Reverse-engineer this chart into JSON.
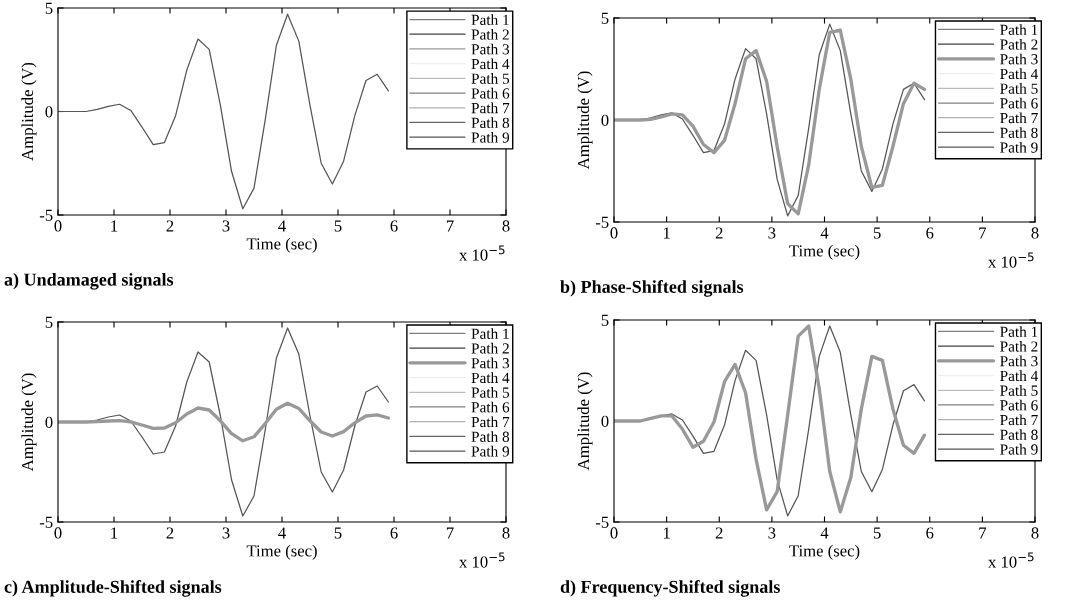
{
  "chart_data": [
    {
      "type": "line",
      "title": "a) Undamaged signals",
      "xlabel": "Time (sec)",
      "ylabel": "Amplitude (V)",
      "annotations": [
        "x 10$^{−5}$"
      ],
      "xlim": [
        0,
        8
      ],
      "xticks": [
        0,
        1,
        2,
        3,
        4,
        5,
        6,
        7,
        8
      ],
      "ylim": [
        -5,
        5
      ],
      "yticks": [
        -5,
        0,
        5
      ],
      "legend": "top right",
      "grid": false,
      "x": [
        0,
        0.1,
        0.3,
        0.5,
        0.7,
        0.9,
        1.1,
        1.3,
        1.5,
        1.7,
        1.9,
        2.1,
        2.3,
        2.5,
        2.7,
        2.9,
        3.1,
        3.3,
        3.5,
        3.7,
        3.9,
        4.1,
        4.3,
        4.5,
        4.7,
        4.9,
        5.1,
        5.3,
        5.5,
        5.7,
        5.9
      ],
      "series": [
        {
          "name": "Path 1",
          "color": "#7f7f7f",
          "values": [
            null,
            null,
            null,
            null,
            null,
            null,
            null,
            null,
            null,
            null,
            null,
            null,
            null,
            null,
            null,
            null,
            null,
            null,
            null,
            null,
            null,
            null,
            null,
            null,
            null,
            null,
            null,
            null,
            null,
            null,
            null
          ]
        },
        {
          "name": "Path 2",
          "color": "#404040",
          "values": [
            null,
            null,
            null,
            null,
            null,
            null,
            null,
            null,
            null,
            null,
            null,
            null,
            null,
            null,
            null,
            null,
            null,
            null,
            null,
            null,
            null,
            null,
            null,
            null,
            null,
            null,
            null,
            null,
            null,
            null,
            null
          ]
        },
        {
          "name": "Path 3",
          "color": "#999999",
          "values": [
            null,
            null,
            null,
            null,
            null,
            null,
            null,
            null,
            null,
            null,
            null,
            null,
            null,
            null,
            null,
            null,
            null,
            null,
            null,
            null,
            null,
            null,
            null,
            null,
            null,
            null,
            null,
            null,
            null,
            null,
            null
          ]
        },
        {
          "name": "Path 4",
          "color": "#eeeeee",
          "values": [
            null,
            null,
            null,
            null,
            null,
            null,
            null,
            null,
            null,
            null,
            null,
            null,
            null,
            null,
            null,
            null,
            null,
            null,
            null,
            null,
            null,
            null,
            null,
            null,
            null,
            null,
            null,
            null,
            null,
            null,
            null
          ]
        },
        {
          "name": "Path 5",
          "color": "#bbbbbb",
          "values": [
            null,
            null,
            null,
            null,
            null,
            null,
            null,
            null,
            null,
            null,
            null,
            null,
            null,
            null,
            null,
            null,
            null,
            null,
            null,
            null,
            null,
            null,
            null,
            null,
            null,
            null,
            null,
            null,
            null,
            null,
            null
          ]
        },
        {
          "name": "Path 6",
          "color": "#808080",
          "values": [
            null,
            null,
            null,
            null,
            null,
            null,
            null,
            null,
            null,
            null,
            null,
            null,
            null,
            null,
            null,
            null,
            null,
            null,
            null,
            null,
            null,
            null,
            null,
            null,
            null,
            null,
            null,
            null,
            null,
            null,
            null
          ]
        },
        {
          "name": "Path 7",
          "color": "#b0b0b0",
          "values": [
            null,
            null,
            null,
            null,
            null,
            null,
            null,
            null,
            null,
            null,
            null,
            null,
            null,
            null,
            null,
            null,
            null,
            null,
            null,
            null,
            null,
            null,
            null,
            null,
            null,
            null,
            null,
            null,
            null,
            null,
            null
          ]
        },
        {
          "name": "Path 8",
          "color": "#666666",
          "values": [
            null,
            null,
            null,
            null,
            null,
            null,
            null,
            null,
            null,
            null,
            null,
            null,
            null,
            null,
            null,
            null,
            null,
            null,
            null,
            null,
            null,
            null,
            null,
            null,
            null,
            null,
            null,
            null,
            null,
            null,
            null
          ]
        },
        {
          "name": "Path 9",
          "color": "#555555",
          "values": [
            0,
            0,
            0,
            0,
            0.1,
            0.25,
            0.35,
            0.05,
            -0.75,
            -1.6,
            -1.5,
            -0.2,
            2.0,
            3.5,
            3.0,
            0.3,
            -2.9,
            -4.7,
            -3.7,
            -0.4,
            3.2,
            4.7,
            3.4,
            0.3,
            -2.5,
            -3.5,
            -2.4,
            -0.2,
            1.5,
            1.8,
            1.0
          ]
        }
      ]
    },
    {
      "type": "line",
      "title": "b) Phase-Shifted signals",
      "xlabel": "Time (sec)",
      "ylabel": "Amplitude (V)",
      "annotations": [
        "x 10$^{−5}$"
      ],
      "xlim": [
        0,
        8
      ],
      "xticks": [
        0,
        1,
        2,
        3,
        4,
        5,
        6,
        7,
        8
      ],
      "ylim": [
        -5,
        5
      ],
      "yticks": [
        -5,
        0,
        5
      ],
      "legend": "top right",
      "grid": false,
      "x": [
        0,
        0.1,
        0.3,
        0.5,
        0.7,
        0.9,
        1.1,
        1.3,
        1.5,
        1.7,
        1.9,
        2.1,
        2.3,
        2.5,
        2.7,
        2.9,
        3.1,
        3.3,
        3.5,
        3.7,
        3.9,
        4.1,
        4.3,
        4.5,
        4.7,
        4.9,
        5.1,
        5.3,
        5.5,
        5.7,
        5.9
      ],
      "series": [
        {
          "name": "Path 1",
          "color": "#7f7f7f",
          "values": [
            null,
            null,
            null,
            null,
            null,
            null,
            null,
            null,
            null,
            null,
            null,
            null,
            null,
            null,
            null,
            null,
            null,
            null,
            null,
            null,
            null,
            null,
            null,
            null,
            null,
            null,
            null,
            null,
            null,
            null,
            null
          ]
        },
        {
          "name": "Path 2",
          "color": "#404040",
          "values": [
            null,
            null,
            null,
            null,
            null,
            null,
            null,
            null,
            null,
            null,
            null,
            null,
            null,
            null,
            null,
            null,
            null,
            null,
            null,
            null,
            null,
            null,
            null,
            null,
            null,
            null,
            null,
            null,
            null,
            null,
            null
          ]
        },
        {
          "name": "Path 3",
          "color": "#999999",
          "values": [
            0,
            0,
            0,
            0,
            0.03,
            0.15,
            0.3,
            0.25,
            -0.3,
            -1.2,
            -1.6,
            -1.0,
            0.8,
            3.0,
            3.4,
            1.9,
            -1.3,
            -4.1,
            -4.6,
            -2.2,
            1.5,
            4.3,
            4.4,
            2.0,
            -1.3,
            -3.3,
            -3.2,
            -1.3,
            0.8,
            1.8,
            1.5
          ]
        },
        {
          "name": "Path 4",
          "color": "#eeeeee",
          "values": [
            null,
            null,
            null,
            null,
            null,
            null,
            null,
            null,
            null,
            null,
            null,
            null,
            null,
            null,
            null,
            null,
            null,
            null,
            null,
            null,
            null,
            null,
            null,
            null,
            null,
            null,
            null,
            null,
            null,
            null,
            null
          ]
        },
        {
          "name": "Path 5",
          "color": "#bbbbbb",
          "values": [
            null,
            null,
            null,
            null,
            null,
            null,
            null,
            null,
            null,
            null,
            null,
            null,
            null,
            null,
            null,
            null,
            null,
            null,
            null,
            null,
            null,
            null,
            null,
            null,
            null,
            null,
            null,
            null,
            null,
            null,
            null
          ]
        },
        {
          "name": "Path 6",
          "color": "#808080",
          "values": [
            null,
            null,
            null,
            null,
            null,
            null,
            null,
            null,
            null,
            null,
            null,
            null,
            null,
            null,
            null,
            null,
            null,
            null,
            null,
            null,
            null,
            null,
            null,
            null,
            null,
            null,
            null,
            null,
            null,
            null,
            null
          ]
        },
        {
          "name": "Path 7",
          "color": "#b0b0b0",
          "values": [
            null,
            null,
            null,
            null,
            null,
            null,
            null,
            null,
            null,
            null,
            null,
            null,
            null,
            null,
            null,
            null,
            null,
            null,
            null,
            null,
            null,
            null,
            null,
            null,
            null,
            null,
            null,
            null,
            null,
            null,
            null
          ]
        },
        {
          "name": "Path 8",
          "color": "#666666",
          "values": [
            null,
            null,
            null,
            null,
            null,
            null,
            null,
            null,
            null,
            null,
            null,
            null,
            null,
            null,
            null,
            null,
            null,
            null,
            null,
            null,
            null,
            null,
            null,
            null,
            null,
            null,
            null,
            null,
            null,
            null,
            null
          ]
        },
        {
          "name": "Path 9",
          "color": "#555555",
          "values": [
            0,
            0,
            0,
            0,
            0.1,
            0.25,
            0.35,
            0.05,
            -0.75,
            -1.6,
            -1.5,
            -0.2,
            2.0,
            3.5,
            3.0,
            0.3,
            -2.9,
            -4.7,
            -3.7,
            -0.4,
            3.2,
            4.7,
            3.4,
            0.3,
            -2.5,
            -3.5,
            -2.4,
            -0.2,
            1.5,
            1.8,
            1.0
          ]
        }
      ]
    },
    {
      "type": "line",
      "title": "c) Amplitude-Shifted signals",
      "xlabel": "Time (sec)",
      "ylabel": "Amplitude (V)",
      "annotations": [
        "x 10$^{−5}$"
      ],
      "xlim": [
        0,
        8
      ],
      "xticks": [
        0,
        1,
        2,
        3,
        4,
        5,
        6,
        7,
        8
      ],
      "ylim": [
        -5,
        5
      ],
      "yticks": [
        -5,
        0,
        5
      ],
      "legend": "top right",
      "grid": false,
      "x": [
        0,
        0.1,
        0.3,
        0.5,
        0.7,
        0.9,
        1.1,
        1.3,
        1.5,
        1.7,
        1.9,
        2.1,
        2.3,
        2.5,
        2.7,
        2.9,
        3.1,
        3.3,
        3.5,
        3.7,
        3.9,
        4.1,
        4.3,
        4.5,
        4.7,
        4.9,
        5.1,
        5.3,
        5.5,
        5.7,
        5.9
      ],
      "series": [
        {
          "name": "Path 1",
          "color": "#7f7f7f",
          "values": [
            null,
            null,
            null,
            null,
            null,
            null,
            null,
            null,
            null,
            null,
            null,
            null,
            null,
            null,
            null,
            null,
            null,
            null,
            null,
            null,
            null,
            null,
            null,
            null,
            null,
            null,
            null,
            null,
            null,
            null,
            null
          ]
        },
        {
          "name": "Path 2",
          "color": "#404040",
          "values": [
            null,
            null,
            null,
            null,
            null,
            null,
            null,
            null,
            null,
            null,
            null,
            null,
            null,
            null,
            null,
            null,
            null,
            null,
            null,
            null,
            null,
            null,
            null,
            null,
            null,
            null,
            null,
            null,
            null,
            null,
            null
          ]
        },
        {
          "name": "Path 3",
          "color": "#999999",
          "values": [
            0,
            0,
            0,
            0,
            0.02,
            0.05,
            0.07,
            0.01,
            -0.15,
            -0.32,
            -0.3,
            -0.04,
            0.4,
            0.7,
            0.6,
            0.06,
            -0.58,
            -0.94,
            -0.74,
            -0.08,
            0.64,
            0.94,
            0.68,
            0.06,
            -0.5,
            -0.7,
            -0.48,
            -0.04,
            0.3,
            0.36,
            0.2
          ]
        },
        {
          "name": "Path 4",
          "color": "#eeeeee",
          "values": [
            null,
            null,
            null,
            null,
            null,
            null,
            null,
            null,
            null,
            null,
            null,
            null,
            null,
            null,
            null,
            null,
            null,
            null,
            null,
            null,
            null,
            null,
            null,
            null,
            null,
            null,
            null,
            null,
            null,
            null,
            null
          ]
        },
        {
          "name": "Path 5",
          "color": "#bbbbbb",
          "values": [
            null,
            null,
            null,
            null,
            null,
            null,
            null,
            null,
            null,
            null,
            null,
            null,
            null,
            null,
            null,
            null,
            null,
            null,
            null,
            null,
            null,
            null,
            null,
            null,
            null,
            null,
            null,
            null,
            null,
            null,
            null
          ]
        },
        {
          "name": "Path 6",
          "color": "#808080",
          "values": [
            null,
            null,
            null,
            null,
            null,
            null,
            null,
            null,
            null,
            null,
            null,
            null,
            null,
            null,
            null,
            null,
            null,
            null,
            null,
            null,
            null,
            null,
            null,
            null,
            null,
            null,
            null,
            null,
            null,
            null,
            null
          ]
        },
        {
          "name": "Path 7",
          "color": "#b0b0b0",
          "values": [
            null,
            null,
            null,
            null,
            null,
            null,
            null,
            null,
            null,
            null,
            null,
            null,
            null,
            null,
            null,
            null,
            null,
            null,
            null,
            null,
            null,
            null,
            null,
            null,
            null,
            null,
            null,
            null,
            null,
            null,
            null
          ]
        },
        {
          "name": "Path 8",
          "color": "#666666",
          "values": [
            null,
            null,
            null,
            null,
            null,
            null,
            null,
            null,
            null,
            null,
            null,
            null,
            null,
            null,
            null,
            null,
            null,
            null,
            null,
            null,
            null,
            null,
            null,
            null,
            null,
            null,
            null,
            null,
            null,
            null,
            null
          ]
        },
        {
          "name": "Path 9",
          "color": "#555555",
          "values": [
            0,
            0,
            0,
            0,
            0.1,
            0.25,
            0.35,
            0.05,
            -0.75,
            -1.6,
            -1.5,
            -0.2,
            2.0,
            3.5,
            3.0,
            0.3,
            -2.9,
            -4.7,
            -3.7,
            -0.4,
            3.2,
            4.7,
            3.4,
            0.3,
            -2.5,
            -3.5,
            -2.4,
            -0.2,
            1.5,
            1.8,
            1.0
          ]
        }
      ]
    },
    {
      "type": "line",
      "title": "d) Frequency-Shifted signals",
      "xlabel": "Time (sec)",
      "ylabel": "Amplitude (V)",
      "annotations": [
        "x 10$^{−5}$"
      ],
      "xlim": [
        0,
        8
      ],
      "xticks": [
        0,
        1,
        2,
        3,
        4,
        5,
        6,
        7,
        8
      ],
      "ylim": [
        -5,
        5
      ],
      "yticks": [
        -5,
        0,
        5
      ],
      "legend": "top right",
      "grid": false,
      "x": [
        0,
        0.1,
        0.3,
        0.5,
        0.7,
        0.9,
        1.1,
        1.3,
        1.5,
        1.7,
        1.9,
        2.1,
        2.3,
        2.5,
        2.7,
        2.9,
        3.1,
        3.3,
        3.5,
        3.7,
        3.9,
        4.1,
        4.3,
        4.5,
        4.7,
        4.9,
        5.1,
        5.3,
        5.5,
        5.7,
        5.9
      ],
      "series": [
        {
          "name": "Path 1",
          "color": "#7f7f7f",
          "values": [
            null,
            null,
            null,
            null,
            null,
            null,
            null,
            null,
            null,
            null,
            null,
            null,
            null,
            null,
            null,
            null,
            null,
            null,
            null,
            null,
            null,
            null,
            null,
            null,
            null,
            null,
            null,
            null,
            null,
            null,
            null
          ]
        },
        {
          "name": "Path 2",
          "color": "#404040",
          "values": [
            null,
            null,
            null,
            null,
            null,
            null,
            null,
            null,
            null,
            null,
            null,
            null,
            null,
            null,
            null,
            null,
            null,
            null,
            null,
            null,
            null,
            null,
            null,
            null,
            null,
            null,
            null,
            null,
            null,
            null,
            null
          ]
        },
        {
          "name": "Path 3",
          "color": "#999999",
          "values": [
            0,
            0,
            0,
            0,
            0.13,
            0.25,
            0.25,
            -0.4,
            -1.3,
            -1.0,
            -0.05,
            1.95,
            2.8,
            1.4,
            -1.9,
            -4.4,
            -3.5,
            0.3,
            4.2,
            4.7,
            1.6,
            -2.5,
            -4.5,
            -2.8,
            0.6,
            3.2,
            3.0,
            0.6,
            -1.2,
            -1.6,
            -0.7
          ]
        },
        {
          "name": "Path 4",
          "color": "#eeeeee",
          "values": [
            null,
            null,
            null,
            null,
            null,
            null,
            null,
            null,
            null,
            null,
            null,
            null,
            null,
            null,
            null,
            null,
            null,
            null,
            null,
            null,
            null,
            null,
            null,
            null,
            null,
            null,
            null,
            null,
            null,
            null,
            null
          ]
        },
        {
          "name": "Path 5",
          "color": "#bbbbbb",
          "values": [
            null,
            null,
            null,
            null,
            null,
            null,
            null,
            null,
            null,
            null,
            null,
            null,
            null,
            null,
            null,
            null,
            null,
            null,
            null,
            null,
            null,
            null,
            null,
            null,
            null,
            null,
            null,
            null,
            null,
            null,
            null
          ]
        },
        {
          "name": "Path 6",
          "color": "#808080",
          "values": [
            null,
            null,
            null,
            null,
            null,
            null,
            null,
            null,
            null,
            null,
            null,
            null,
            null,
            null,
            null,
            null,
            null,
            null,
            null,
            null,
            null,
            null,
            null,
            null,
            null,
            null,
            null,
            null,
            null,
            null,
            null
          ]
        },
        {
          "name": "Path 7",
          "color": "#b0b0b0",
          "values": [
            null,
            null,
            null,
            null,
            null,
            null,
            null,
            null,
            null,
            null,
            null,
            null,
            null,
            null,
            null,
            null,
            null,
            null,
            null,
            null,
            null,
            null,
            null,
            null,
            null,
            null,
            null,
            null,
            null,
            null,
            null
          ]
        },
        {
          "name": "Path 8",
          "color": "#666666",
          "values": [
            null,
            null,
            null,
            null,
            null,
            null,
            null,
            null,
            null,
            null,
            null,
            null,
            null,
            null,
            null,
            null,
            null,
            null,
            null,
            null,
            null,
            null,
            null,
            null,
            null,
            null,
            null,
            null,
            null,
            null,
            null
          ]
        },
        {
          "name": "Path 9",
          "color": "#555555",
          "values": [
            0,
            0,
            0,
            0,
            0.1,
            0.25,
            0.35,
            0.05,
            -0.75,
            -1.6,
            -1.5,
            -0.2,
            2.0,
            3.5,
            3.0,
            0.3,
            -2.9,
            -4.7,
            -3.7,
            -0.4,
            3.2,
            4.7,
            3.4,
            0.3,
            -2.5,
            -3.5,
            -2.4,
            -0.2,
            1.5,
            1.8,
            1.0
          ]
        }
      ]
    }
  ]
}
